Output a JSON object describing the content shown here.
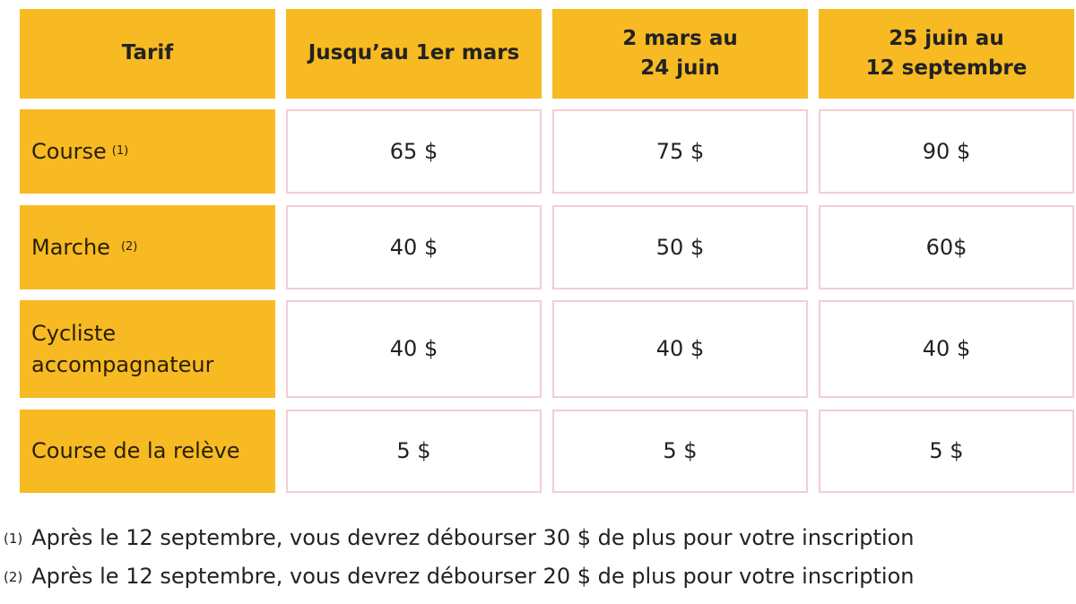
{
  "table": {
    "headers": [
      "Tarif",
      "Jusqu’au 1er mars",
      "2 mars au\n24 juin",
      "25 juin au\n12 septembre"
    ],
    "rows": [
      {
        "label": "Course",
        "note": "(1)",
        "values": [
          "65 $",
          "75 $",
          "90 $"
        ]
      },
      {
        "label": "Marche",
        "note": "(2)",
        "values": [
          "40 $",
          "50 $",
          "60$"
        ]
      },
      {
        "label": "Cycliste\naccompagnateur",
        "note": "",
        "values": [
          "40 $",
          "40 $",
          "40 $"
        ]
      },
      {
        "label": "Course de la relève",
        "note": "",
        "values": [
          "5 $",
          "5 $",
          "5 $"
        ]
      }
    ]
  },
  "footnotes": [
    {
      "marker": "(1)",
      "text": "Après le 12 septembre, vous devrez débourser 30 $ de plus pour votre inscription"
    },
    {
      "marker": "(2)",
      "text": "Après le 12 septembre, vous devrez débourser 20 $ de plus pour votre inscription"
    }
  ],
  "colors": {
    "header_bg": "#F7BA22",
    "cell_border": "#f3cdd2"
  }
}
